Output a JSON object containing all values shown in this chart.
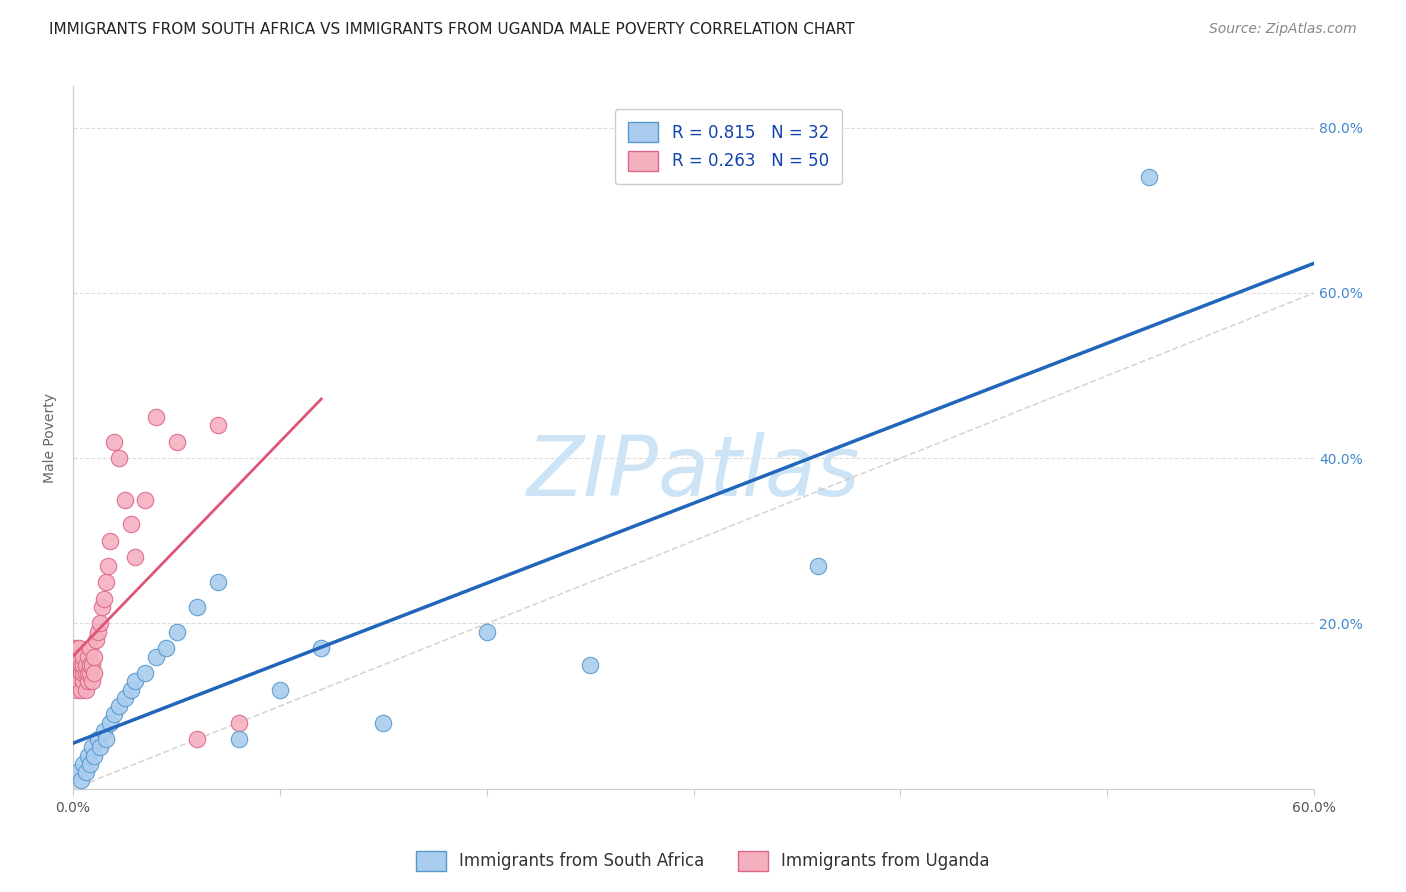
{
  "title": "IMMIGRANTS FROM SOUTH AFRICA VS IMMIGRANTS FROM UGANDA MALE POVERTY CORRELATION CHART",
  "source": "Source: ZipAtlas.com",
  "ylabel": "Male Poverty",
  "xlim": [
    0,
    0.6
  ],
  "ylim": [
    0,
    0.85
  ],
  "background_color": "#ffffff",
  "grid_color": "#dddddd",
  "south_africa_color": "#aaccee",
  "south_africa_edge": "#5599cc",
  "uganda_color": "#f5b0c0",
  "uganda_edge": "#dd6688",
  "R_south_africa": 0.815,
  "N_south_africa": 32,
  "R_uganda": 0.263,
  "N_uganda": 50,
  "legend_label_1": "R = 0.815   N = 32",
  "legend_label_2": "R = 0.263   N = 50",
  "legend_bottom_1": "Immigrants from South Africa",
  "legend_bottom_2": "Immigrants from Uganda",
  "south_africa_x": [
    0.002,
    0.004,
    0.005,
    0.006,
    0.007,
    0.008,
    0.009,
    0.01,
    0.012,
    0.013,
    0.015,
    0.016,
    0.018,
    0.02,
    0.022,
    0.025,
    0.028,
    0.03,
    0.035,
    0.04,
    0.045,
    0.05,
    0.06,
    0.07,
    0.08,
    0.1,
    0.12,
    0.15,
    0.2,
    0.25,
    0.36,
    0.52
  ],
  "south_africa_y": [
    0.02,
    0.01,
    0.03,
    0.02,
    0.04,
    0.03,
    0.05,
    0.04,
    0.06,
    0.05,
    0.07,
    0.06,
    0.08,
    0.09,
    0.1,
    0.11,
    0.12,
    0.13,
    0.14,
    0.16,
    0.17,
    0.19,
    0.22,
    0.25,
    0.06,
    0.12,
    0.17,
    0.08,
    0.19,
    0.15,
    0.27,
    0.74
  ],
  "uganda_x": [
    0.001,
    0.001,
    0.001,
    0.002,
    0.002,
    0.002,
    0.002,
    0.003,
    0.003,
    0.003,
    0.003,
    0.004,
    0.004,
    0.004,
    0.005,
    0.005,
    0.005,
    0.005,
    0.006,
    0.006,
    0.006,
    0.007,
    0.007,
    0.007,
    0.008,
    0.008,
    0.008,
    0.009,
    0.009,
    0.01,
    0.01,
    0.011,
    0.012,
    0.013,
    0.014,
    0.015,
    0.016,
    0.017,
    0.018,
    0.02,
    0.022,
    0.025,
    0.028,
    0.03,
    0.035,
    0.04,
    0.05,
    0.06,
    0.07,
    0.08
  ],
  "uganda_y": [
    0.14,
    0.16,
    0.17,
    0.12,
    0.14,
    0.15,
    0.16,
    0.13,
    0.15,
    0.16,
    0.17,
    0.12,
    0.14,
    0.15,
    0.13,
    0.14,
    0.15,
    0.16,
    0.12,
    0.14,
    0.15,
    0.13,
    0.14,
    0.16,
    0.14,
    0.15,
    0.17,
    0.13,
    0.15,
    0.14,
    0.16,
    0.18,
    0.19,
    0.2,
    0.22,
    0.23,
    0.25,
    0.27,
    0.3,
    0.42,
    0.4,
    0.35,
    0.32,
    0.28,
    0.35,
    0.45,
    0.42,
    0.06,
    0.44,
    0.08
  ],
  "blue_line_color": "#2266bb",
  "pink_line_color": "#dd5577",
  "dash_line_color": "#cccccc",
  "title_fontsize": 11,
  "source_fontsize": 10,
  "axis_label_fontsize": 10,
  "tick_fontsize": 10,
  "legend_fontsize": 12,
  "watermark_text": "ZIPatlas",
  "watermark_color": "#cce4f5",
  "watermark_fontsize": 60
}
